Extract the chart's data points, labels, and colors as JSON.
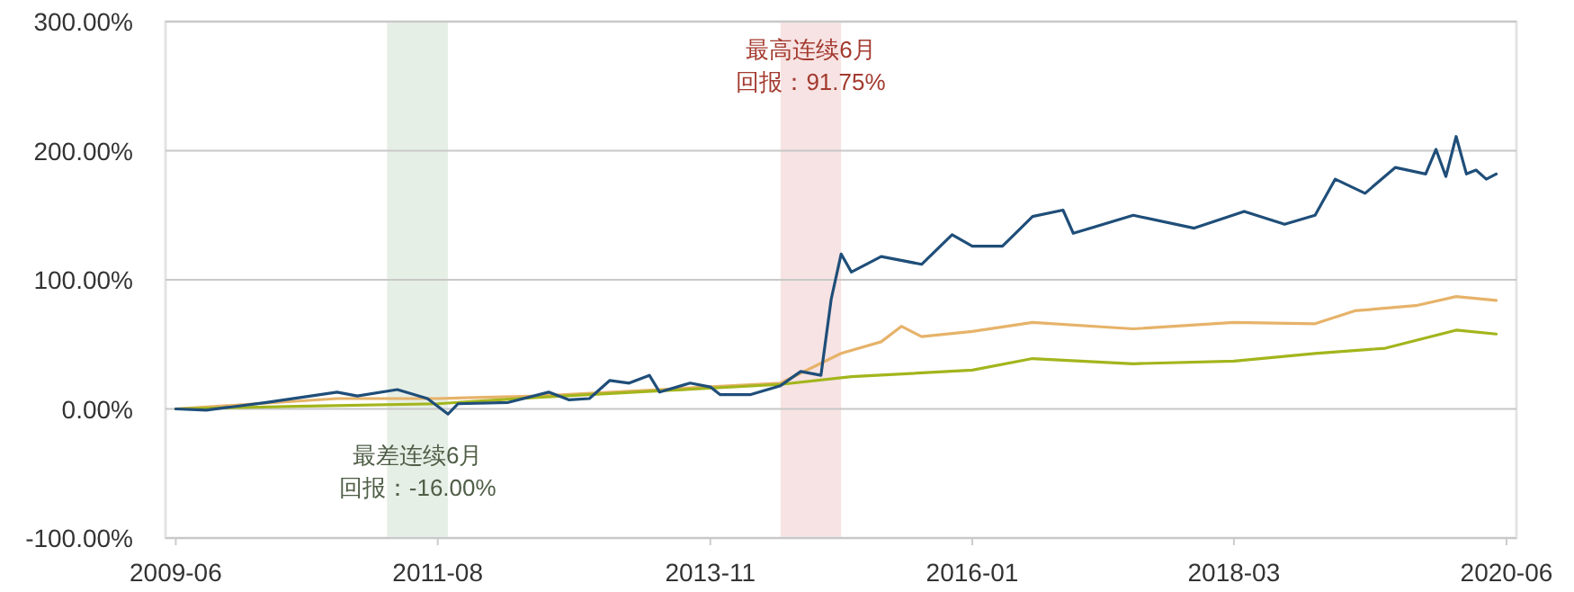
{
  "chart_data": {
    "type": "line",
    "xlim": [
      "2009-05",
      "2020-07"
    ],
    "ylim": [
      -100,
      300
    ],
    "xticks": [
      "2009-06",
      "2011-08",
      "2013-11",
      "2016-01",
      "2018-03",
      "2020-06"
    ],
    "yticks": [
      {
        "value": -100,
        "label": "-100.00%"
      },
      {
        "value": 0,
        "label": "0.00%"
      },
      {
        "value": 100,
        "label": "100.00%"
      },
      {
        "value": 200,
        "label": "200.00%"
      },
      {
        "value": 300,
        "label": "300.00%"
      }
    ],
    "grid": "y",
    "marker": "none",
    "line_style": "solid",
    "bands": [
      {
        "axis": "x",
        "from": "2011-03",
        "to": "2011-09",
        "label": "最差连续6月回报：-16.00%",
        "color": "#e6efe6"
      },
      {
        "axis": "x",
        "from": "2014-06",
        "to": "2014-12",
        "label": "最高连续6月回报：91.75%",
        "color": "#f7e3e3"
      }
    ],
    "series": [
      {
        "color": "#e6b36a",
        "x": [
          "2009-06",
          "2010-10",
          "2011-08",
          "2012-06",
          "2013-06",
          "2014-06",
          "2014-12",
          "2015-04",
          "2015-06",
          "2015-08",
          "2016-01",
          "2016-07",
          "2017-05",
          "2018-03",
          "2018-11",
          "2019-03",
          "2019-09",
          "2020-01",
          "2020-05"
        ],
        "values": [
          0,
          8,
          8,
          10,
          15,
          20,
          43,
          52,
          64,
          56,
          60,
          67,
          62,
          67,
          66,
          76,
          80,
          87,
          84
        ]
      },
      {
        "color": "#a3b51c",
        "x": [
          "2009-06",
          "2010-06",
          "2011-08",
          "2012-06",
          "2013-06",
          "2014-06",
          "2015-01",
          "2016-01",
          "2016-07",
          "2017-05",
          "2018-03",
          "2018-11",
          "2019-06",
          "2020-01",
          "2020-05"
        ],
        "values": [
          0,
          2,
          4,
          9,
          14,
          19,
          25,
          30,
          39,
          35,
          37,
          43,
          47,
          61,
          58
        ]
      },
      {
        "color": "#1f4e79",
        "x": [
          "2009-06",
          "2009-09",
          "2010-03",
          "2010-10",
          "2010-12",
          "2011-04",
          "2011-07",
          "2011-09",
          "2011-10",
          "2012-03",
          "2012-07",
          "2012-09",
          "2012-11",
          "2013-01",
          "2013-03",
          "2013-05",
          "2013-06",
          "2013-09",
          "2013-11",
          "2013-12",
          "2014-03",
          "2014-06",
          "2014-08",
          "2014-10",
          "2014-11",
          "2014-12",
          "2015-01",
          "2015-04",
          "2015-08",
          "2015-11",
          "2016-01",
          "2016-04",
          "2016-07",
          "2016-10",
          "2016-11",
          "2017-05",
          "2017-11",
          "2018-04",
          "2018-08",
          "2018-11",
          "2019-01",
          "2019-04",
          "2019-07",
          "2019-10",
          "2019-11",
          "2019-12",
          "2020-01",
          "2020-02",
          "2020-03",
          "2020-04",
          "2020-05"
        ],
        "values": [
          0,
          -1,
          5,
          13,
          10,
          15,
          8,
          -4,
          4,
          5,
          13,
          7,
          8,
          22,
          20,
          26,
          13,
          20,
          17,
          11,
          11,
          18,
          29,
          26,
          85,
          120,
          106,
          118,
          112,
          135,
          126,
          126,
          149,
          154,
          136,
          150,
          140,
          153,
          143,
          150,
          178,
          167,
          187,
          182,
          201,
          180,
          211,
          182,
          185,
          178,
          182
        ]
      }
    ]
  }
}
